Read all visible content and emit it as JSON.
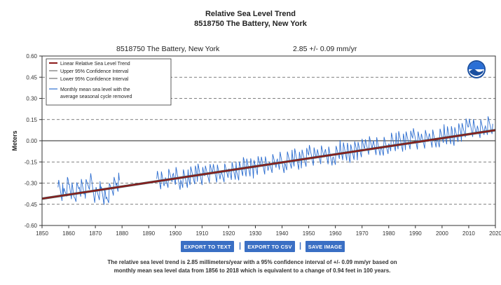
{
  "page": {
    "title": "Relative Sea Level Trend",
    "subtitle": "8518750 The Battery, New York",
    "station_label": "8518750 The Battery, New York",
    "rate_label": "2.85 +/-  0.09 mm/yr",
    "buttons": {
      "export_text": "EXPORT TO TEXT",
      "export_csv": "EXPORT TO CSV",
      "save_image": "SAVE IMAGE",
      "separator": "|"
    },
    "description": "The relative sea level trend is 2.85 millimeters/year with a 95% confidence interval of +/- 0.09 mm/yr based on monthly mean sea level data from 1856 to 2018 which is equivalent to a change of 0.94 feet in 100 years."
  },
  "chart_data": {
    "type": "line",
    "title": "Relative Sea Level Trend",
    "subtitle": "8518750 The Battery, New York",
    "xlabel": "",
    "ylabel": "Meters",
    "xlim": [
      1850,
      2020
    ],
    "ylim": [
      -0.6,
      0.6
    ],
    "xticks": [
      1850,
      1860,
      1870,
      1880,
      1890,
      1900,
      1910,
      1920,
      1930,
      1940,
      1950,
      1960,
      1970,
      1980,
      1990,
      2000,
      2010,
      2020
    ],
    "yticks": [
      -0.6,
      -0.45,
      -0.3,
      -0.15,
      0.0,
      0.15,
      0.3,
      0.45,
      0.6
    ],
    "ytick_labels": [
      "-0.60",
      "-0.45",
      "-0.30",
      "-0.15",
      "0.00",
      "0.15",
      "0.30",
      "0.45",
      "0.60"
    ],
    "grid": "horizontal dashed",
    "legend_position": "top-left",
    "legend": [
      "Linear Relative Sea Level Trend",
      "Upper 95% Confidence Interval",
      "Lower 95% Confidence Interval",
      "Monthly mean sea level with the average seasonal cycle removed"
    ],
    "trend": {
      "name": "Linear Relative Sea Level Trend",
      "x": [
        1850,
        2020
      ],
      "y": [
        -0.41,
        0.075
      ],
      "color": "#8b1a1a"
    },
    "confidence_interval": {
      "upper_offset": 0.006,
      "lower_offset": -0.006,
      "color": "#555555"
    },
    "series": [
      {
        "name": "Monthly mean sea level with the average seasonal cycle removed",
        "color": "#2f6fd0",
        "segments": [
          {
            "x": [
              1856,
              1858,
              1860,
              1862,
              1864,
              1866,
              1868,
              1870,
              1872,
              1874,
              1876,
              1878,
              1879
            ],
            "y": [
              -0.33,
              -0.38,
              -0.31,
              -0.4,
              -0.33,
              -0.36,
              -0.29,
              -0.38,
              -0.34,
              -0.41,
              -0.33,
              -0.3,
              -0.28
            ]
          },
          {
            "x": [
              1893,
              1896,
              1899,
              1902,
              1905,
              1908,
              1911,
              1914,
              1917,
              1920,
              1923,
              1926,
              1929,
              1932,
              1935,
              1938,
              1941,
              1944,
              1947,
              1950,
              1953,
              1956,
              1959,
              1962,
              1965,
              1968,
              1971,
              1974,
              1977,
              1980,
              1983,
              1986,
              1989,
              1992,
              1995,
              1998,
              2001,
              2004,
              2007,
              2010,
              2013,
              2016,
              2019
            ],
            "y": [
              -0.27,
              -0.3,
              -0.24,
              -0.28,
              -0.26,
              -0.23,
              -0.25,
              -0.21,
              -0.24,
              -0.2,
              -0.22,
              -0.18,
              -0.2,
              -0.17,
              -0.19,
              -0.14,
              -0.16,
              -0.12,
              -0.14,
              -0.1,
              -0.11,
              -0.08,
              -0.12,
              -0.06,
              -0.09,
              -0.07,
              -0.05,
              -0.03,
              -0.06,
              -0.02,
              0.0,
              -0.01,
              0.02,
              0.0,
              0.03,
              0.01,
              0.05,
              0.03,
              0.06,
              0.1,
              0.07,
              0.09,
              0.12
            ]
          }
        ]
      }
    ]
  }
}
